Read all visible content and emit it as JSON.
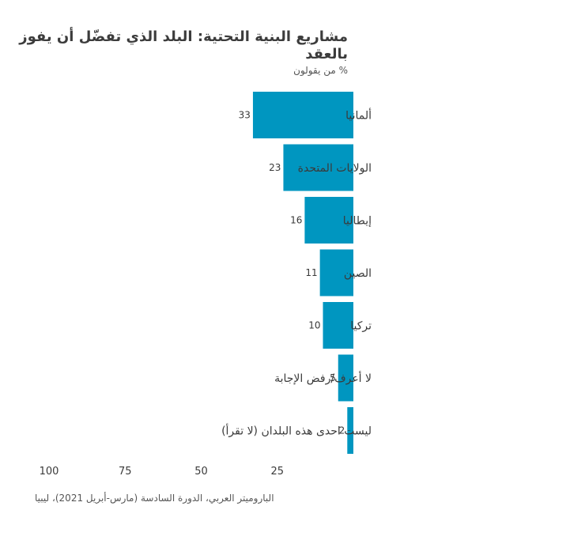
{
  "chart_data": {
    "type": "bar",
    "orientation": "horizontal",
    "direction": "right-to-left",
    "title": "مشاريع البنية التحتية: البلد الذي تفضّل أن يفوز بالعقد",
    "subtitle": "% من يقولون",
    "categories": [
      "ألمانيا",
      "الولايات المتحدة",
      "إيطاليا",
      "الصين",
      "تركيا",
      "لا أعرف/رفض الإجابة",
      "ليست احدى هذه البلدان (لا تقرأ)"
    ],
    "values": [
      33,
      23,
      16,
      11,
      10,
      5,
      2
    ],
    "xlim": [
      0,
      100
    ],
    "x_ticks": [
      100,
      75,
      50,
      25
    ],
    "grid": false,
    "bar_color": "#0096C0"
  },
  "source": "الباروميتر العربي، الدورة السادسة (مارس-أبريل 2021)، ليبيا"
}
